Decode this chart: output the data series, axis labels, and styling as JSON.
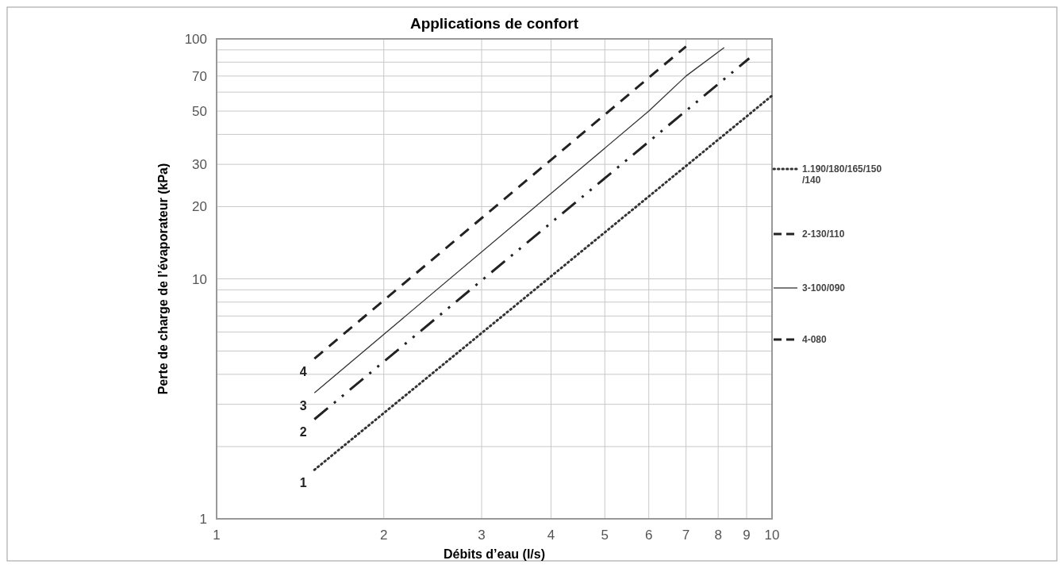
{
  "chart_data": {
    "type": "line",
    "title": "Applications de confort",
    "xlabel": "Débits d’eau (l/s)",
    "ylabel": "Perte de charge de l’évaporateur (kPa)",
    "log": "xy",
    "xlim": [
      1,
      10
    ],
    "ylim": [
      1,
      100
    ],
    "xticks": [
      1,
      2,
      3,
      4,
      5,
      6,
      7,
      8,
      9,
      10
    ],
    "yticks": [
      1,
      {
        "value": 2,
        "label": null
      },
      {
        "value": 3,
        "label": null
      },
      {
        "value": 4,
        "label": null
      },
      {
        "value": 5,
        "label": null
      },
      {
        "value": 6,
        "label": null
      },
      {
        "value": 7,
        "label": null
      },
      {
        "value": 8,
        "label": null
      },
      {
        "value": 9,
        "label": null
      },
      10,
      20,
      30,
      {
        "value": 40,
        "label": null
      },
      50,
      {
        "value": 60,
        "label": null
      },
      70,
      {
        "value": 80,
        "label": null
      },
      {
        "value": 90,
        "label": null
      },
      100
    ],
    "grid": true,
    "legend": "right",
    "series": [
      {
        "name": "1.190/180/165/150/140",
        "color": "#333333",
        "line_style": "dotted",
        "x": [
          1.5,
          10
        ],
        "values": [
          1.6,
          58
        ]
      },
      {
        "name": "2-130/110",
        "color": "#222222",
        "line_style": "dashed",
        "x": [
          1.5,
          9.1
        ],
        "values": [
          2.6,
          83
        ]
      },
      {
        "name": "3-100/090",
        "color": "#333333",
        "line_style": "solid",
        "x": [
          1.5,
          6,
          7,
          8.2
        ],
        "values": [
          3.35,
          50,
          70,
          92
        ]
      },
      {
        "name": "4-080",
        "color": "#222222",
        "line_style": "dashed",
        "x": [
          1.5,
          7
        ],
        "values": [
          4.65,
          93
        ]
      }
    ],
    "annotations": [
      "1",
      "2",
      "3",
      "4"
    ]
  }
}
